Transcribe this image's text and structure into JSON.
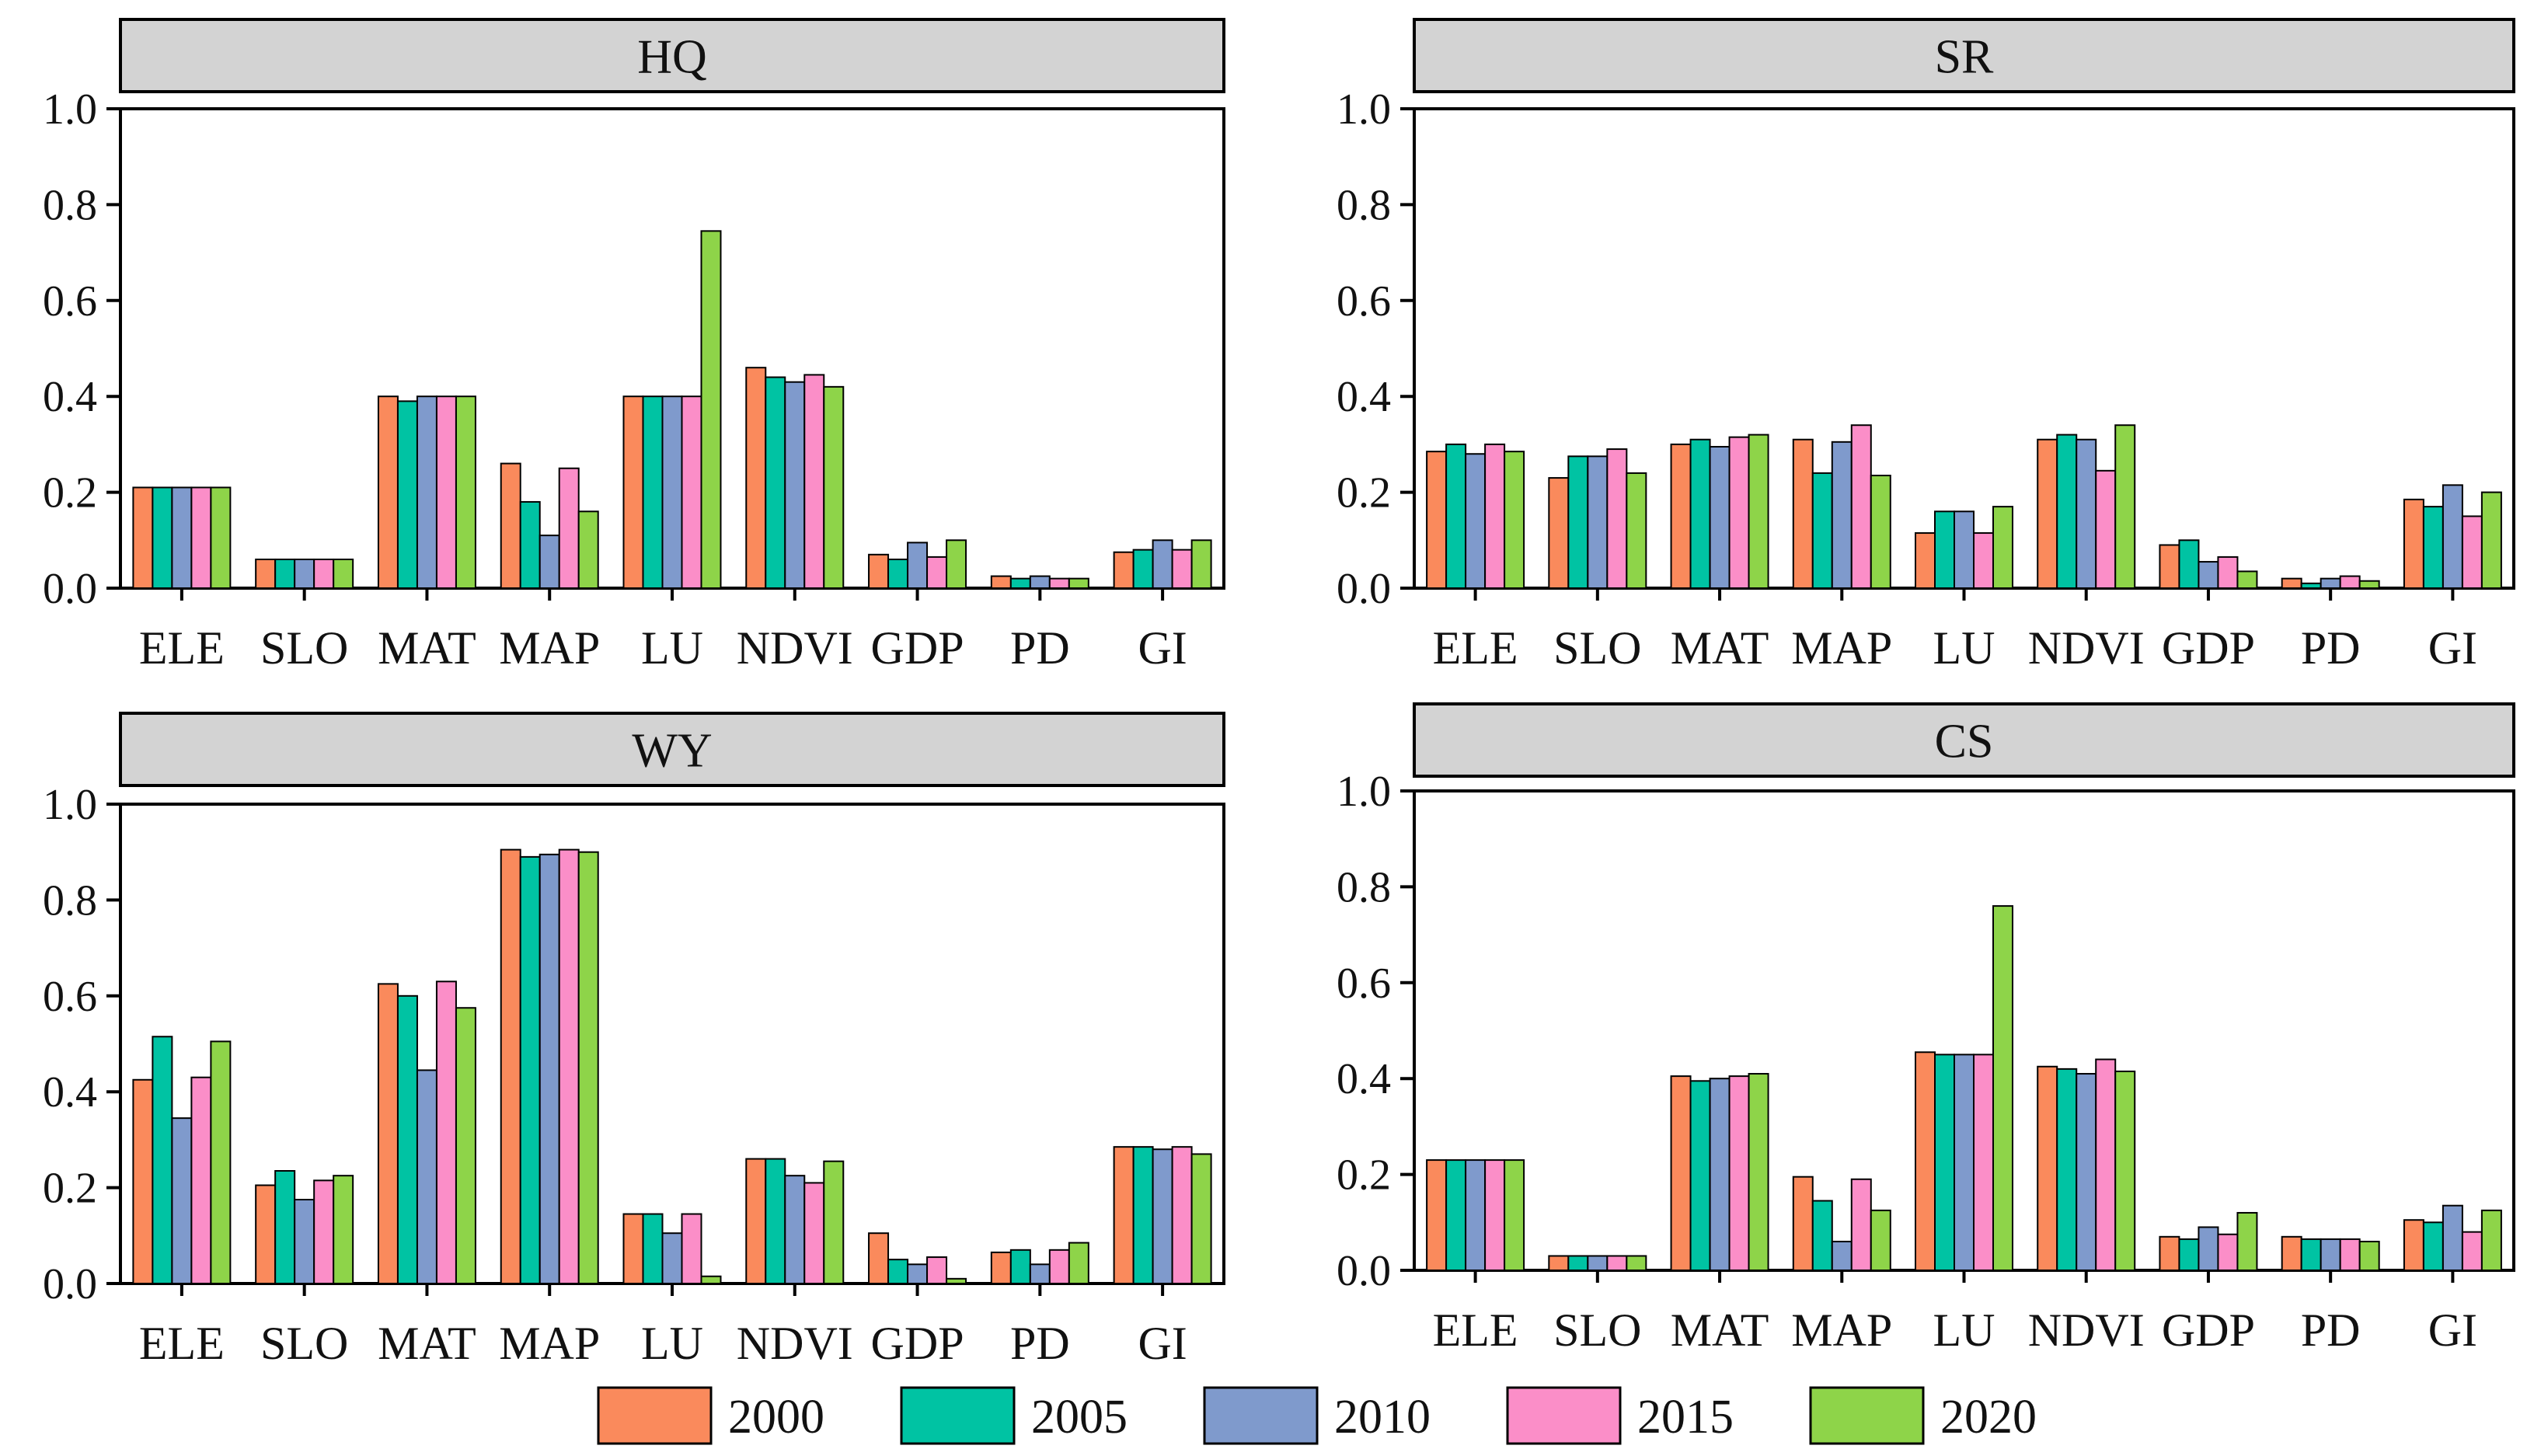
{
  "colors": {
    "2000": "#fa8a5c",
    "2005": "#00c3a3",
    "2010": "#7f9acc",
    "2015": "#fb8ec8",
    "2020": "#8ed449",
    "header_fill": "#d3d3d3"
  },
  "legend": [
    "2000",
    "2005",
    "2010",
    "2015",
    "2020"
  ],
  "chart_data": [
    {
      "type": "bar",
      "title": "HQ",
      "categories": [
        "ELE",
        "SLO",
        "MAT",
        "MAP",
        "LU",
        "NDVI",
        "GDP",
        "PD",
        "GI"
      ],
      "yticks": [
        "0.0",
        "0.2",
        "0.4",
        "0.6",
        "0.8",
        "1.0"
      ],
      "ylim": [
        0,
        1
      ],
      "series": [
        {
          "name": "2000",
          "values": [
            0.21,
            0.06,
            0.4,
            0.26,
            0.4,
            0.46,
            0.07,
            0.025,
            0.075
          ]
        },
        {
          "name": "2005",
          "values": [
            0.21,
            0.06,
            0.39,
            0.18,
            0.4,
            0.44,
            0.06,
            0.02,
            0.08
          ]
        },
        {
          "name": "2010",
          "values": [
            0.21,
            0.06,
            0.4,
            0.11,
            0.4,
            0.43,
            0.095,
            0.025,
            0.1
          ]
        },
        {
          "name": "2015",
          "values": [
            0.21,
            0.06,
            0.4,
            0.25,
            0.4,
            0.445,
            0.065,
            0.02,
            0.08
          ]
        },
        {
          "name": "2020",
          "values": [
            0.21,
            0.06,
            0.4,
            0.16,
            0.745,
            0.42,
            0.1,
            0.02,
            0.1
          ]
        }
      ]
    },
    {
      "type": "bar",
      "title": "SR",
      "categories": [
        "ELE",
        "SLO",
        "MAT",
        "MAP",
        "LU",
        "NDVI",
        "GDP",
        "PD",
        "GI"
      ],
      "yticks": [
        "0.0",
        "0.2",
        "0.4",
        "0.6",
        "0.8",
        "1.0"
      ],
      "ylim": [
        0,
        1
      ],
      "series": [
        {
          "name": "2000",
          "values": [
            0.285,
            0.23,
            0.3,
            0.31,
            0.115,
            0.31,
            0.09,
            0.02,
            0.185
          ]
        },
        {
          "name": "2005",
          "values": [
            0.3,
            0.275,
            0.31,
            0.24,
            0.16,
            0.32,
            0.1,
            0.01,
            0.17
          ]
        },
        {
          "name": "2010",
          "values": [
            0.28,
            0.275,
            0.295,
            0.305,
            0.16,
            0.31,
            0.055,
            0.02,
            0.215
          ]
        },
        {
          "name": "2015",
          "values": [
            0.3,
            0.29,
            0.315,
            0.34,
            0.115,
            0.245,
            0.065,
            0.025,
            0.15
          ]
        },
        {
          "name": "2020",
          "values": [
            0.285,
            0.24,
            0.32,
            0.235,
            0.17,
            0.34,
            0.035,
            0.015,
            0.2
          ]
        }
      ]
    },
    {
      "type": "bar",
      "title": "WY",
      "categories": [
        "ELE",
        "SLO",
        "MAT",
        "MAP",
        "LU",
        "NDVI",
        "GDP",
        "PD",
        "GI"
      ],
      "yticks": [
        "0.0",
        "0.2",
        "0.4",
        "0.6",
        "0.8",
        "1.0"
      ],
      "ylim": [
        0,
        1
      ],
      "series": [
        {
          "name": "2000",
          "values": [
            0.425,
            0.205,
            0.625,
            0.905,
            0.145,
            0.26,
            0.105,
            0.065,
            0.285
          ]
        },
        {
          "name": "2005",
          "values": [
            0.515,
            0.235,
            0.6,
            0.89,
            0.145,
            0.26,
            0.05,
            0.07,
            0.285
          ]
        },
        {
          "name": "2010",
          "values": [
            0.345,
            0.175,
            0.445,
            0.895,
            0.105,
            0.225,
            0.04,
            0.04,
            0.28
          ]
        },
        {
          "name": "2015",
          "values": [
            0.43,
            0.215,
            0.63,
            0.905,
            0.145,
            0.21,
            0.055,
            0.07,
            0.285
          ]
        },
        {
          "name": "2020",
          "values": [
            0.505,
            0.225,
            0.575,
            0.9,
            0.015,
            0.255,
            0.01,
            0.085,
            0.27
          ]
        }
      ]
    },
    {
      "type": "bar",
      "title": "CS",
      "categories": [
        "ELE",
        "SLO",
        "MAT",
        "MAP",
        "LU",
        "NDVI",
        "GDP",
        "PD",
        "GI"
      ],
      "yticks": [
        "0.0",
        "0.2",
        "0.4",
        "0.6",
        "0.8",
        "1.0"
      ],
      "ylim": [
        0,
        1
      ],
      "series": [
        {
          "name": "2000",
          "values": [
            0.23,
            0.03,
            0.405,
            0.195,
            0.455,
            0.425,
            0.07,
            0.07,
            0.105
          ]
        },
        {
          "name": "2005",
          "values": [
            0.23,
            0.03,
            0.395,
            0.145,
            0.45,
            0.42,
            0.065,
            0.065,
            0.1
          ]
        },
        {
          "name": "2010",
          "values": [
            0.23,
            0.03,
            0.4,
            0.06,
            0.45,
            0.41,
            0.09,
            0.065,
            0.135
          ]
        },
        {
          "name": "2015",
          "values": [
            0.23,
            0.03,
            0.405,
            0.19,
            0.45,
            0.44,
            0.075,
            0.065,
            0.08
          ]
        },
        {
          "name": "2020",
          "values": [
            0.23,
            0.03,
            0.41,
            0.125,
            0.76,
            0.415,
            0.12,
            0.06,
            0.125
          ]
        }
      ]
    }
  ]
}
